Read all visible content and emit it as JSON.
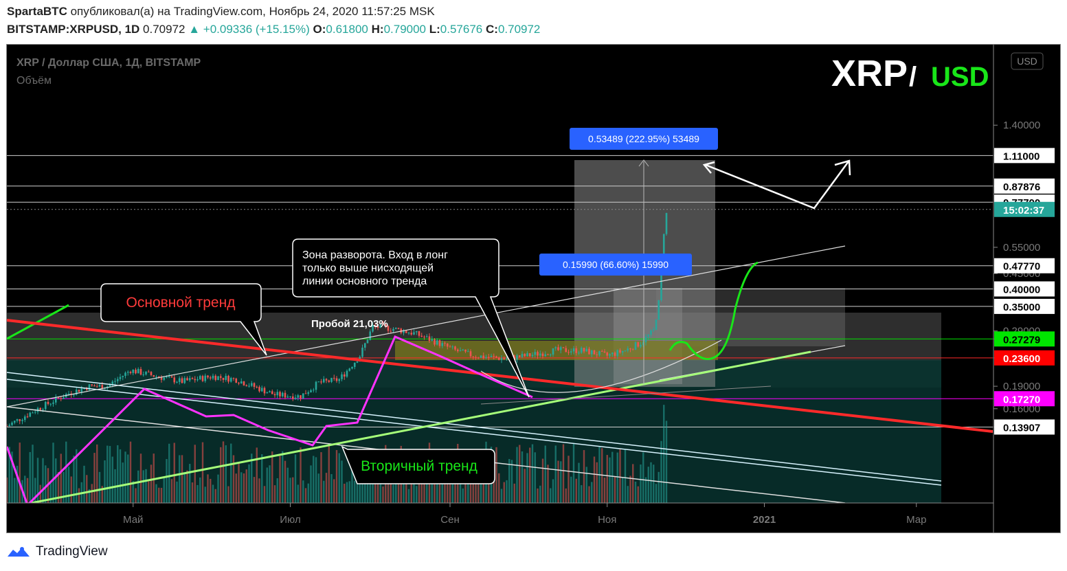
{
  "header": {
    "author": "SpartaBTC",
    "published_text": "опубликовал(а) на TradingView.com, Ноябрь 24, 2020 11:57:25 MSK",
    "symbol": "BITSTAMP:XRPUSD, 1D",
    "last": "0.70972",
    "change": "▲ +0.09336 (+15.15%)",
    "o_label": "O:",
    "o": "0.61800",
    "h_label": "H:",
    "h": "0.79000",
    "l_label": "L:",
    "l": "0.57676",
    "c_label": "C:",
    "c": "0.70972"
  },
  "legend": {
    "title": "XRP / Доллар США, 1Д, BITSTAMP",
    "volume": "Объём"
  },
  "watermark": {
    "base": "XRP",
    "slash": "/",
    "quote": "USD"
  },
  "currency_button": "USD",
  "annotations": {
    "main_trend": "Основной тренд",
    "secondary_trend": "Вторичный тренд",
    "reversal_lines": [
      "Зона разворота. Вход в лонг",
      "только выше нисходящей",
      "линии основного тренда"
    ],
    "breakout": "Пробой 21,03%",
    "measure_big": "0.53489 (222.95%) 53489",
    "measure_small": "0.15990 (66.60%) 15990"
  },
  "price_tags": [
    {
      "price": 1.11,
      "text": "1.11000",
      "bg": "#ffffff",
      "fg": "#000000"
    },
    {
      "price": 0.87876,
      "text": "0.87876",
      "bg": "#ffffff",
      "fg": "#000000"
    },
    {
      "price": 0.777,
      "text": "0.77700",
      "bg": "#ffffff",
      "fg": "#000000"
    },
    {
      "price": 0.735,
      "text": "15:02:37",
      "bg": "#26a69a",
      "fg": "#ffffff"
    },
    {
      "price": 0.4777,
      "text": "0.47770",
      "bg": "#ffffff",
      "fg": "#000000"
    },
    {
      "price": 0.4,
      "text": "0.40000",
      "bg": "#ffffff",
      "fg": "#000000"
    },
    {
      "price": 0.35,
      "text": "0.35000",
      "bg": "#ffffff",
      "fg": "#000000"
    },
    {
      "price": 0.27279,
      "text": "0.27279",
      "bg": "#00e600",
      "fg": "#000000"
    },
    {
      "price": 0.236,
      "text": "0.23600",
      "bg": "#ff0000",
      "fg": "#ffffff"
    },
    {
      "price": 0.1727,
      "text": "0.17270",
      "bg": "#ff00ff",
      "fg": "#ffffff"
    },
    {
      "price": 0.13907,
      "text": "0.13907",
      "bg": "#ffffff",
      "fg": "#000000"
    }
  ],
  "colors": {
    "main_trend": "#ff2a2a",
    "secondary_trend": "#a6ff7a",
    "zigzag": "#ff33ff",
    "up": "#26a69a",
    "down": "#ef5350",
    "measure_label": "#2962ff",
    "watermark_quote": "#19e619",
    "level_green": "#00e600",
    "level_magenta": "#ff00ff"
  },
  "footer": {
    "brand": "TradingView"
  },
  "chart_data": {
    "type": "candlestick",
    "title": "XRP / Доллар США, 1Д, BITSTAMP",
    "timeframe": "1D",
    "y_scale": "log",
    "y_ticks": [
      1.4,
      1.11,
      0.87876,
      0.777,
      0.55,
      0.4777,
      0.45,
      0.4,
      0.35,
      0.29,
      0.27279,
      0.236,
      0.19,
      0.1727,
      0.16,
      0.13907
    ],
    "y_tick_labels": [
      "1.40000",
      "1.11000",
      "0.87876",
      "0.77700",
      "0.55000",
      "0.47770",
      "0.45000",
      "0.40000",
      "0.35000",
      "0.29000",
      "0.27279",
      "0.23600",
      "0.19000",
      "0.17270",
      "0.16000",
      "0.13907"
    ],
    "x_ticks": [
      "Май",
      "Июл",
      "Сен",
      "Ноя",
      "2021",
      "Мар"
    ],
    "approx_daily_close": [
      [
        "2020-03-13",
        0.14
      ],
      [
        "2020-03-25",
        0.16
      ],
      [
        "2020-04-06",
        0.18
      ],
      [
        "2020-04-14",
        0.19
      ],
      [
        "2020-04-21",
        0.19
      ],
      [
        "2020-04-30",
        0.215
      ],
      [
        "2020-05-10",
        0.205
      ],
      [
        "2020-05-20",
        0.197
      ],
      [
        "2020-06-01",
        0.205
      ],
      [
        "2020-06-10",
        0.2
      ],
      [
        "2020-06-25",
        0.178
      ],
      [
        "2020-07-05",
        0.176
      ],
      [
        "2020-07-12",
        0.195
      ],
      [
        "2020-07-20",
        0.2
      ],
      [
        "2020-07-28",
        0.24
      ],
      [
        "2020-08-02",
        0.3
      ],
      [
        "2020-08-10",
        0.295
      ],
      [
        "2020-08-18",
        0.285
      ],
      [
        "2020-08-25",
        0.27
      ],
      [
        "2020-09-03",
        0.25
      ],
      [
        "2020-09-10",
        0.24
      ],
      [
        "2020-09-22",
        0.235
      ],
      [
        "2020-10-01",
        0.24
      ],
      [
        "2020-10-12",
        0.25
      ],
      [
        "2020-10-22",
        0.25
      ],
      [
        "2020-11-01",
        0.24
      ],
      [
        "2020-11-08",
        0.25
      ],
      [
        "2020-11-14",
        0.265
      ],
      [
        "2020-11-19",
        0.29
      ],
      [
        "2020-11-21",
        0.36
      ],
      [
        "2020-11-22",
        0.49
      ],
      [
        "2020-11-23",
        0.62
      ],
      [
        "2020-11-24",
        0.70972
      ]
    ],
    "volume_series_name": "Объём"
  }
}
